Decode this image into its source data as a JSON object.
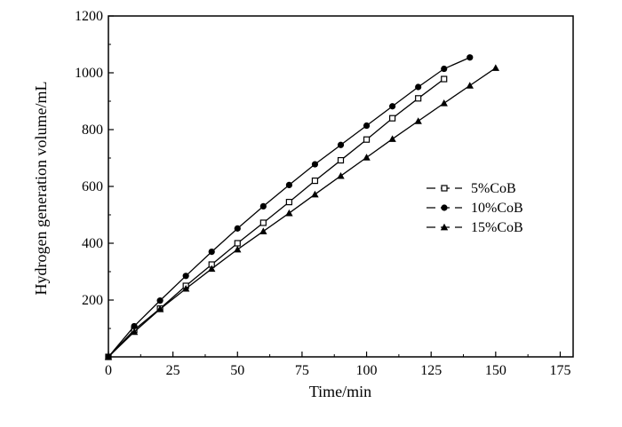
{
  "chart_data": {
    "type": "line",
    "title": "",
    "xlabel": "Time/min",
    "ylabel": "Hydrogen generation volume/mL",
    "xlim": [
      0,
      180
    ],
    "ylim": [
      0,
      1200
    ],
    "xticks": [
      0,
      25,
      50,
      75,
      100,
      125,
      150,
      175
    ],
    "yticks": [
      200,
      400,
      600,
      800,
      1000,
      1200
    ],
    "grid": false,
    "legend": "center-right",
    "series": [
      {
        "name": "5%CoB",
        "marker": "open-square",
        "x": [
          0,
          10,
          20,
          30,
          40,
          50,
          60,
          70,
          80,
          90,
          100,
          110,
          120,
          130
        ],
        "y": [
          0,
          95,
          170,
          250,
          325,
          400,
          472,
          545,
          620,
          692,
          765,
          840,
          910,
          978
        ]
      },
      {
        "name": "10%CoB",
        "marker": "filled-circle",
        "x": [
          0,
          10,
          20,
          30,
          40,
          50,
          60,
          70,
          80,
          90,
          100,
          110,
          120,
          130,
          140
        ],
        "y": [
          0,
          108,
          198,
          285,
          370,
          452,
          530,
          605,
          678,
          746,
          814,
          882,
          950,
          1014,
          1054
        ]
      },
      {
        "name": "15%CoB",
        "marker": "filled-triangle",
        "x": [
          0,
          10,
          20,
          30,
          40,
          50,
          60,
          70,
          80,
          90,
          100,
          110,
          120,
          130,
          140,
          150
        ],
        "y": [
          0,
          88,
          168,
          240,
          310,
          378,
          442,
          506,
          572,
          637,
          702,
          767,
          830,
          893,
          955,
          1017
        ]
      }
    ]
  }
}
